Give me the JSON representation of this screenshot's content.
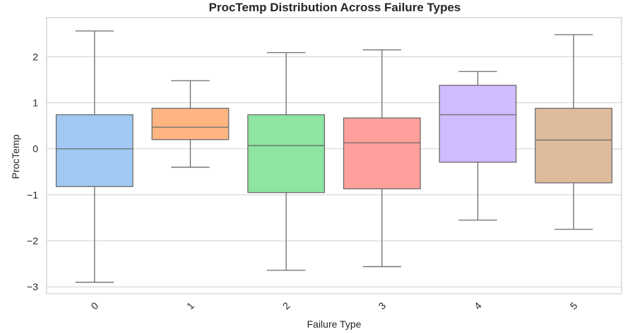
{
  "chart_data": {
    "type": "box",
    "title": "ProcTemp Distribution Across Failure Types",
    "xlabel": "Failure Type",
    "ylabel": "ProcTemp",
    "categories": [
      "0",
      "1",
      "2",
      "3",
      "4",
      "5"
    ],
    "yticks": [
      -3,
      -2,
      -1,
      0,
      1,
      2
    ],
    "ytick_labels": [
      "−3",
      "−2",
      "−1",
      "0",
      "1",
      "2"
    ],
    "ylim": [
      -3.15,
      2.85
    ],
    "grid": "horizontal",
    "x_tick_rotation": 45,
    "boxes": [
      {
        "category": "0",
        "whisker_low": -2.9,
        "q1": -0.82,
        "median": 0.0,
        "q3": 0.74,
        "whisker_high": 2.56,
        "color": "#a1c9f4"
      },
      {
        "category": "1",
        "whisker_low": -0.4,
        "q1": 0.2,
        "median": 0.47,
        "q3": 0.88,
        "whisker_high": 1.48,
        "color": "#ffb482"
      },
      {
        "category": "2",
        "whisker_low": -2.64,
        "q1": -0.95,
        "median": 0.07,
        "q3": 0.74,
        "whisker_high": 2.09,
        "color": "#8de5a1"
      },
      {
        "category": "3",
        "whisker_low": -2.56,
        "q1": -0.87,
        "median": 0.13,
        "q3": 0.67,
        "whisker_high": 2.15,
        "color": "#ff9f9b"
      },
      {
        "category": "4",
        "whisker_low": -1.55,
        "q1": -0.29,
        "median": 0.74,
        "q3": 1.38,
        "whisker_high": 1.68,
        "color": "#d0bbff"
      },
      {
        "category": "5",
        "whisker_low": -1.75,
        "q1": -0.74,
        "median": 0.19,
        "q3": 0.88,
        "whisker_high": 2.48,
        "color": "#debb9b"
      }
    ]
  }
}
